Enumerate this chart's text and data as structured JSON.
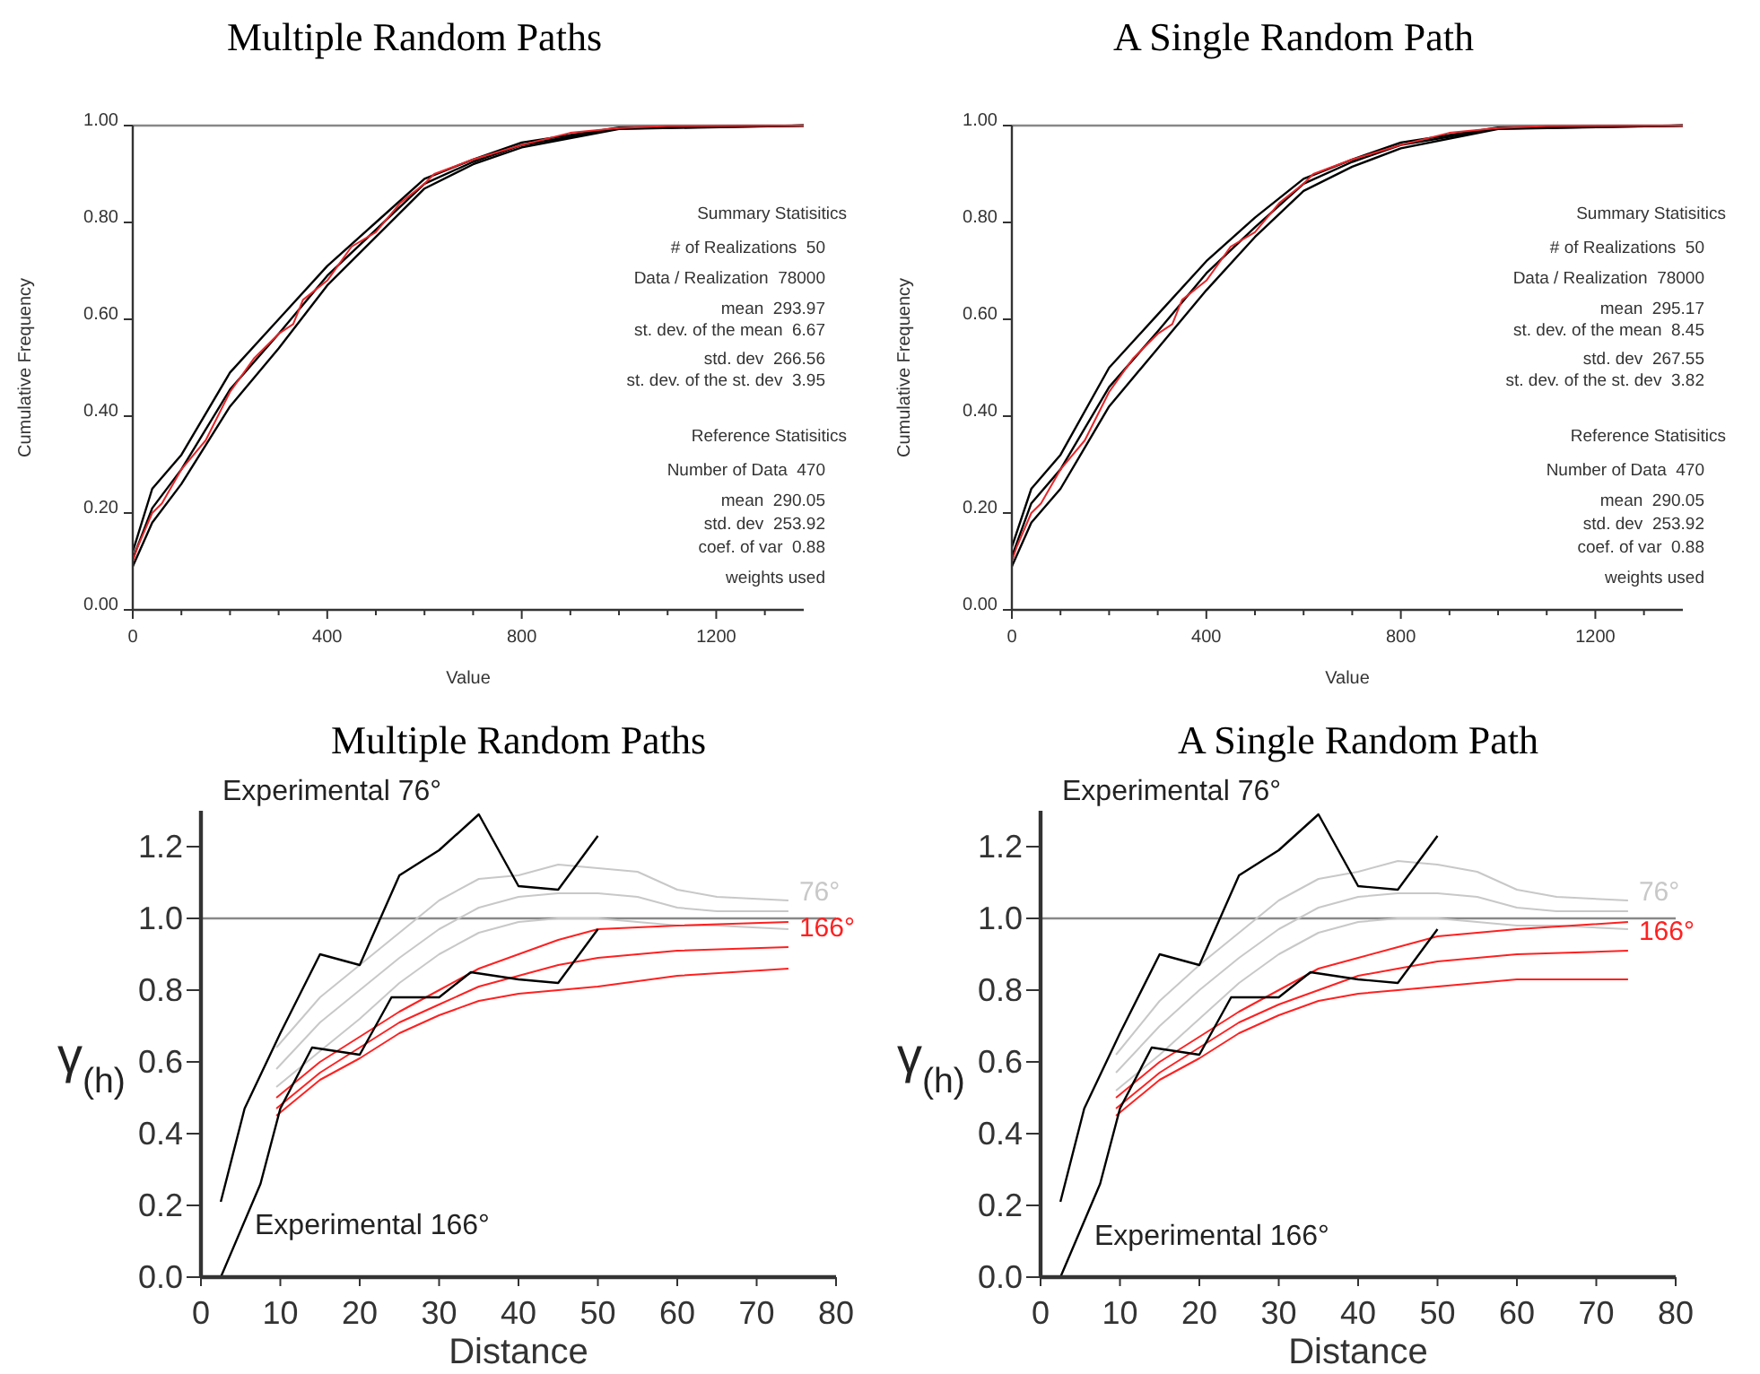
{
  "chart_data": [
    {
      "type": "line",
      "title": "Multiple Random Paths",
      "xlabel": "Value",
      "ylabel": "Cumulative Frequency",
      "xlim": [
        0,
        1380
      ],
      "ylim": [
        0,
        1.0
      ],
      "xticks": [
        0,
        {
          "value": 100,
          "label": null
        },
        {
          "value": 200,
          "label": null
        },
        {
          "value": 300,
          "label": null
        },
        400,
        {
          "value": 500,
          "label": null
        },
        {
          "value": 600,
          "label": null
        },
        {
          "value": 700,
          "label": null
        },
        800,
        {
          "value": 900,
          "label": null
        },
        {
          "value": 1000,
          "label": null
        },
        {
          "value": 1100,
          "label": null
        },
        1200,
        {
          "value": 1300,
          "label": null
        }
      ],
      "yticks": [
        {
          "value": 0,
          "label": "0.00"
        },
        {
          "value": 0.2,
          "label": "0.20"
        },
        {
          "value": 0.4,
          "label": "0.40"
        },
        {
          "value": 0.6,
          "label": "0.60"
        },
        {
          "value": 0.8,
          "label": "0.80"
        },
        {
          "value": 1.0,
          "label": "1.00"
        }
      ],
      "ref_lines": [
        {
          "axis": "y",
          "value": 1.0,
          "color": "#888888"
        }
      ],
      "series": [
        {
          "color": "#000000",
          "x": [
            0,
            40,
            100,
            200,
            300,
            400,
            500,
            600,
            700,
            800,
            1000,
            1380
          ],
          "values": [
            0.12,
            0.25,
            0.32,
            0.49,
            0.6,
            0.71,
            0.8,
            0.89,
            0.93,
            0.965,
            0.996,
            1.0
          ]
        },
        {
          "color": "#000000",
          "x": [
            0,
            40,
            100,
            200,
            300,
            400,
            500,
            600,
            700,
            800,
            1000,
            1380
          ],
          "values": [
            0.105,
            0.21,
            0.29,
            0.455,
            0.57,
            0.69,
            0.785,
            0.88,
            0.925,
            0.96,
            0.994,
            1.0
          ]
        },
        {
          "color": "#000000",
          "x": [
            0,
            40,
            100,
            200,
            300,
            400,
            500,
            600,
            700,
            800,
            1000,
            1380
          ],
          "values": [
            0.09,
            0.18,
            0.26,
            0.42,
            0.54,
            0.67,
            0.77,
            0.87,
            0.92,
            0.955,
            0.993,
            1.0
          ]
        },
        {
          "color": "#e8262a",
          "x": [
            0,
            0,
            10,
            40,
            60,
            100,
            150,
            200,
            250,
            300,
            330,
            350,
            400,
            450,
            500,
            550,
            600,
            620,
            700,
            800,
            900,
            1000,
            1100,
            1380
          ],
          "values": [
            0,
            0.1,
            0.13,
            0.2,
            0.22,
            0.29,
            0.35,
            0.45,
            0.52,
            0.57,
            0.59,
            0.64,
            0.68,
            0.75,
            0.78,
            0.84,
            0.88,
            0.9,
            0.93,
            0.96,
            0.985,
            0.995,
            0.999,
            1.0
          ]
        }
      ],
      "annotations": [
        "Summary Statisitics",
        "# of Realizations  50",
        "Data / Realization  78000",
        "mean  293.97",
        "st. dev. of the mean  6.67",
        "std. dev  266.56",
        "st. dev. of the st. dev  3.95",
        "Reference Statisitics",
        "Number of Data  470",
        "mean  290.05",
        "std. dev  253.92",
        "coef. of var  0.88",
        "weights used"
      ]
    },
    {
      "type": "line",
      "title": "A Single Random Path",
      "xlabel": "Value",
      "ylabel": "Cumulative Frequency",
      "xlim": [
        0,
        1380
      ],
      "ylim": [
        0,
        1.0
      ],
      "xticks": [
        0,
        {
          "value": 100,
          "label": null
        },
        {
          "value": 200,
          "label": null
        },
        {
          "value": 300,
          "label": null
        },
        400,
        {
          "value": 500,
          "label": null
        },
        {
          "value": 600,
          "label": null
        },
        {
          "value": 700,
          "label": null
        },
        800,
        {
          "value": 900,
          "label": null
        },
        {
          "value": 1000,
          "label": null
        },
        {
          "value": 1100,
          "label": null
        },
        1200,
        {
          "value": 1300,
          "label": null
        }
      ],
      "yticks": [
        {
          "value": 0,
          "label": "0.00"
        },
        {
          "value": 0.2,
          "label": "0.20"
        },
        {
          "value": 0.4,
          "label": "0.40"
        },
        {
          "value": 0.6,
          "label": "0.60"
        },
        {
          "value": 0.8,
          "label": "0.80"
        },
        {
          "value": 1.0,
          "label": "1.00"
        }
      ],
      "ref_lines": [
        {
          "axis": "y",
          "value": 1.0,
          "color": "#888888"
        }
      ],
      "series": [
        {
          "color": "#000000",
          "x": [
            0,
            40,
            100,
            200,
            300,
            400,
            500,
            600,
            700,
            800,
            1000,
            1380
          ],
          "values": [
            0.13,
            0.25,
            0.32,
            0.5,
            0.61,
            0.72,
            0.81,
            0.89,
            0.93,
            0.965,
            0.996,
            1.0
          ]
        },
        {
          "color": "#000000",
          "x": [
            0,
            40,
            100,
            200,
            300,
            400,
            500,
            600,
            700,
            800,
            1000,
            1380
          ],
          "values": [
            0.11,
            0.22,
            0.29,
            0.46,
            0.575,
            0.695,
            0.79,
            0.88,
            0.925,
            0.96,
            0.994,
            1.0
          ]
        },
        {
          "color": "#000000",
          "x": [
            0,
            40,
            100,
            200,
            300,
            400,
            500,
            600,
            700,
            800,
            1000,
            1380
          ],
          "values": [
            0.09,
            0.18,
            0.25,
            0.42,
            0.54,
            0.66,
            0.77,
            0.865,
            0.915,
            0.953,
            0.993,
            1.0
          ]
        },
        {
          "color": "#e8262a",
          "x": [
            0,
            0,
            10,
            40,
            60,
            100,
            150,
            200,
            250,
            300,
            330,
            350,
            400,
            450,
            500,
            550,
            600,
            620,
            700,
            800,
            900,
            1000,
            1100,
            1380
          ],
          "values": [
            0,
            0.1,
            0.13,
            0.2,
            0.22,
            0.29,
            0.35,
            0.45,
            0.52,
            0.57,
            0.59,
            0.64,
            0.68,
            0.75,
            0.78,
            0.84,
            0.88,
            0.9,
            0.93,
            0.96,
            0.985,
            0.995,
            0.999,
            1.0
          ]
        }
      ],
      "annotations": [
        "Summary Statisitics",
        "# of Realizations  50",
        "Data / Realization  78000",
        "mean  295.17",
        "st. dev. of the mean  8.45",
        "std. dev  267.55",
        "st. dev. of the st. dev  3.82",
        "Reference Statisitics",
        "Number of Data  470",
        "mean  290.05",
        "std. dev  253.92",
        "coef. of var  0.88",
        "weights used"
      ]
    },
    {
      "type": "line",
      "title": "Multiple Random Paths",
      "xlabel": "Distance",
      "ylabel": "γ$_{(h)}$",
      "xlim": [
        0,
        80
      ],
      "ylim": [
        0,
        1.3
      ],
      "xticks": [
        0,
        10,
        20,
        30,
        40,
        50,
        60,
        70,
        80
      ],
      "yticks": [
        {
          "value": 0,
          "label": "0.0"
        },
        0.2,
        0.4,
        0.6,
        0.8,
        {
          "value": 1.0,
          "label": "1.0"
        },
        1.2
      ],
      "ref_lines": [
        {
          "axis": "y",
          "value": 1.0,
          "color": "#888888"
        }
      ],
      "series": [
        {
          "color": "#c8c8c8",
          "x": [
            9.5,
            15,
            20,
            25,
            30,
            35,
            40,
            45,
            50,
            55,
            60,
            65,
            74
          ],
          "values": [
            0.64,
            0.78,
            0.87,
            0.96,
            1.05,
            1.11,
            1.12,
            1.15,
            1.14,
            1.13,
            1.08,
            1.06,
            1.05
          ]
        },
        {
          "name": "76°",
          "color": "#c8c8c8",
          "x": [
            9.5,
            15,
            20,
            25,
            30,
            35,
            40,
            45,
            50,
            55,
            60,
            65,
            74
          ],
          "values": [
            0.58,
            0.71,
            0.8,
            0.89,
            0.97,
            1.03,
            1.06,
            1.07,
            1.07,
            1.06,
            1.03,
            1.02,
            1.02
          ]
        },
        {
          "color": "#c8c8c8",
          "x": [
            9.5,
            15,
            20,
            25,
            30,
            35,
            40,
            45,
            50,
            55,
            60,
            65,
            74
          ],
          "values": [
            0.53,
            0.63,
            0.72,
            0.82,
            0.9,
            0.96,
            0.99,
            1.0,
            1.0,
            0.99,
            0.98,
            0.98,
            0.97
          ]
        },
        {
          "color": "#ff2020",
          "x": [
            9.5,
            15,
            20,
            25,
            30,
            35,
            40,
            45,
            50,
            60,
            74
          ],
          "values": [
            0.5,
            0.6,
            0.67,
            0.74,
            0.8,
            0.86,
            0.9,
            0.94,
            0.97,
            0.98,
            0.99
          ]
        },
        {
          "name": "166°",
          "color": "#ff2020",
          "x": [
            9.5,
            15,
            20,
            25,
            30,
            35,
            40,
            45,
            50,
            60,
            74
          ],
          "values": [
            0.47,
            0.57,
            0.64,
            0.71,
            0.76,
            0.81,
            0.84,
            0.87,
            0.89,
            0.91,
            0.92
          ]
        },
        {
          "color": "#ff2020",
          "x": [
            9.5,
            15,
            20,
            25,
            30,
            35,
            40,
            45,
            50,
            60,
            74
          ],
          "values": [
            0.45,
            0.55,
            0.61,
            0.68,
            0.73,
            0.77,
            0.79,
            0.8,
            0.81,
            0.84,
            0.86
          ]
        },
        {
          "color": "#000000",
          "x": [
            2.5,
            5.5,
            10,
            15,
            20,
            25,
            30,
            35,
            40,
            45,
            50
          ],
          "values": [
            0.21,
            0.47,
            0.68,
            0.9,
            0.87,
            1.12,
            1.19,
            1.29,
            1.09,
            1.08,
            1.23
          ]
        },
        {
          "color": "#000000",
          "x": [
            2.5,
            7.5,
            10,
            14,
            20,
            24,
            30,
            34,
            40,
            45,
            50
          ],
          "values": [
            0,
            0.26,
            0.47,
            0.64,
            0.62,
            0.78,
            0.78,
            0.85,
            0.83,
            0.82,
            0.97
          ]
        }
      ],
      "annotations": [
        "Experimental 76°",
        "Experimental 166°"
      ]
    },
    {
      "type": "line",
      "title": "A Single Random Path",
      "xlabel": "Distance",
      "ylabel": "γ$_{(h)}$",
      "xlim": [
        0,
        80
      ],
      "ylim": [
        0,
        1.3
      ],
      "xticks": [
        0,
        10,
        20,
        30,
        40,
        50,
        60,
        70,
        80
      ],
      "yticks": [
        {
          "value": 0,
          "label": "0.0"
        },
        0.2,
        0.4,
        0.6,
        0.8,
        {
          "value": 1.0,
          "label": "1.0"
        },
        1.2
      ],
      "ref_lines": [
        {
          "axis": "y",
          "value": 1.0,
          "color": "#888888"
        }
      ],
      "series": [
        {
          "color": "#c8c8c8",
          "x": [
            9.5,
            15,
            20,
            25,
            30,
            35,
            40,
            45,
            50,
            55,
            60,
            65,
            74
          ],
          "values": [
            0.62,
            0.77,
            0.87,
            0.96,
            1.05,
            1.11,
            1.13,
            1.16,
            1.15,
            1.13,
            1.08,
            1.06,
            1.05
          ]
        },
        {
          "name": "76°",
          "color": "#c8c8c8",
          "x": [
            9.5,
            15,
            20,
            25,
            30,
            35,
            40,
            45,
            50,
            55,
            60,
            65,
            74
          ],
          "values": [
            0.57,
            0.7,
            0.8,
            0.89,
            0.97,
            1.03,
            1.06,
            1.07,
            1.07,
            1.06,
            1.03,
            1.02,
            1.02
          ]
        },
        {
          "color": "#c8c8c8",
          "x": [
            9.5,
            15,
            20,
            25,
            30,
            35,
            40,
            45,
            50,
            55,
            60,
            65,
            74
          ],
          "values": [
            0.52,
            0.62,
            0.72,
            0.82,
            0.9,
            0.96,
            0.99,
            1.0,
            1.0,
            0.99,
            0.98,
            0.98,
            0.97
          ]
        },
        {
          "color": "#ff2020",
          "x": [
            9.5,
            15,
            20,
            25,
            30,
            35,
            40,
            45,
            50,
            60,
            74
          ],
          "values": [
            0.5,
            0.6,
            0.67,
            0.74,
            0.8,
            0.86,
            0.89,
            0.92,
            0.95,
            0.97,
            0.99
          ]
        },
        {
          "name": "166°",
          "color": "#ff2020",
          "x": [
            9.5,
            15,
            20,
            25,
            30,
            35,
            40,
            45,
            50,
            60,
            74
          ],
          "values": [
            0.47,
            0.57,
            0.64,
            0.71,
            0.76,
            0.8,
            0.84,
            0.86,
            0.88,
            0.9,
            0.91
          ]
        },
        {
          "color": "#ff2020",
          "x": [
            9.5,
            15,
            20,
            25,
            30,
            35,
            40,
            45,
            50,
            60,
            74
          ],
          "values": [
            0.45,
            0.55,
            0.61,
            0.68,
            0.73,
            0.77,
            0.79,
            0.8,
            0.81,
            0.83,
            0.83
          ]
        },
        {
          "color": "#000000",
          "x": [
            2.5,
            5.5,
            10,
            15,
            20,
            25,
            30,
            35,
            40,
            45,
            50
          ],
          "values": [
            0.21,
            0.47,
            0.68,
            0.9,
            0.87,
            1.12,
            1.19,
            1.29,
            1.09,
            1.08,
            1.23
          ]
        },
        {
          "color": "#000000",
          "x": [
            2.5,
            7.5,
            10,
            14,
            20,
            24,
            30,
            34,
            40,
            45,
            50
          ],
          "values": [
            0,
            0.26,
            0.47,
            0.64,
            0.62,
            0.78,
            0.78,
            0.85,
            0.83,
            0.82,
            0.97
          ]
        }
      ],
      "annotations": [
        "Experimental 76°",
        "Experimental 166°"
      ]
    }
  ]
}
